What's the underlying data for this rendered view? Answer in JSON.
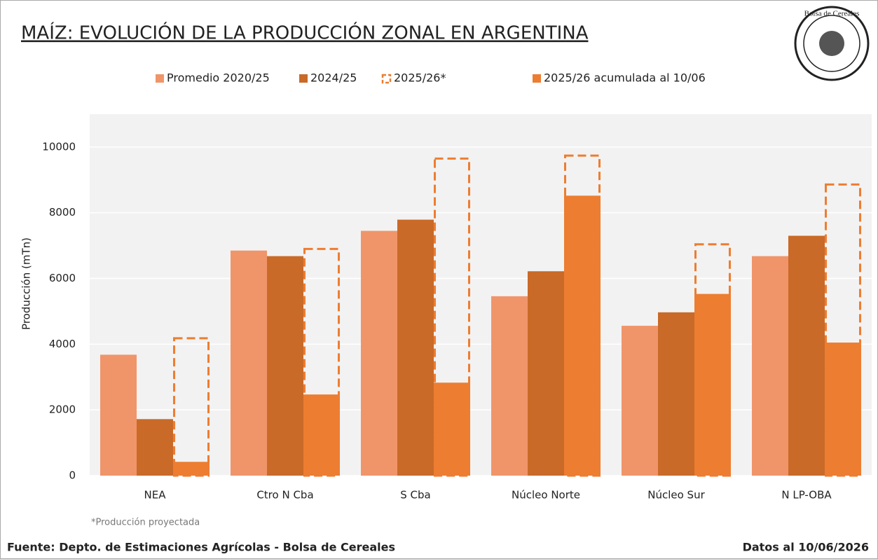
{
  "chart_data": {
    "type": "bar",
    "title": "MAÍZ: EVOLUCIÓN DE LA PRODUCCIÓN ZONAL EN ARGENTINA",
    "logo_text": "Bolsa de Cereales",
    "y_label": "Producción (mTn)",
    "categories": [
      "NEA",
      "Ctro N Cba",
      "S Cba",
      "Núcleo Norte",
      "Núcleo Sur",
      "N LP-OBA"
    ],
    "series": [
      {
        "name": "Promedio 2020/25",
        "color": "#f0956a",
        "values": [
          3680,
          6850,
          7450,
          5460,
          4560,
          6680
        ]
      },
      {
        "name": "2024/25",
        "color": "#c96a28",
        "values": [
          1720,
          6680,
          7790,
          6220,
          4970,
          7300
        ]
      },
      {
        "name": "2025/26 acumulada al 10/06",
        "color": "#ed7d31",
        "values": [
          420,
          2470,
          2830,
          8520,
          5530,
          4050
        ]
      },
      {
        "name": "2025/26*",
        "color": "#ed7d31",
        "style": "dashed",
        "values": [
          4180,
          6900,
          9650,
          9740,
          7040,
          8860
        ]
      }
    ],
    "ylim": [
      0,
      11000
    ],
    "yticks": [
      0,
      2000,
      4000,
      6000,
      8000,
      10000
    ],
    "grid": true,
    "note": "*Producción proyectada",
    "source": "Fuente: Depto. de Estimaciones Agrícolas - Bolsa de Cereales",
    "date_note": "Datos al 10/06/2026"
  }
}
